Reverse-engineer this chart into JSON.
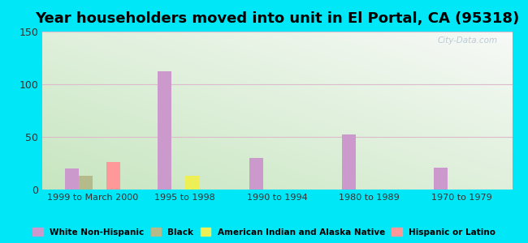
{
  "title": "Year householders moved into unit in El Portal, CA (95318)",
  "background_color": "#00e8f8",
  "categories": [
    "1999 to March 2000",
    "1995 to 1998",
    "1990 to 1994",
    "1980 to 1989",
    "1970 to 1979"
  ],
  "series": {
    "White Non-Hispanic": {
      "color": "#cc99cc",
      "values": [
        20,
        112,
        30,
        52,
        21
      ]
    },
    "Black": {
      "color": "#b5ba8a",
      "values": [
        13,
        0,
        0,
        0,
        0
      ]
    },
    "American Indian and Alaska Native": {
      "color": "#eeee55",
      "values": [
        0,
        13,
        0,
        0,
        0
      ]
    },
    "Hispanic or Latino": {
      "color": "#ff9999",
      "values": [
        26,
        0,
        0,
        0,
        0
      ]
    }
  },
  "ylim": [
    0,
    150
  ],
  "yticks": [
    0,
    50,
    100,
    150
  ],
  "bar_width": 0.15,
  "title_fontsize": 13,
  "watermark": "City-Data.com"
}
